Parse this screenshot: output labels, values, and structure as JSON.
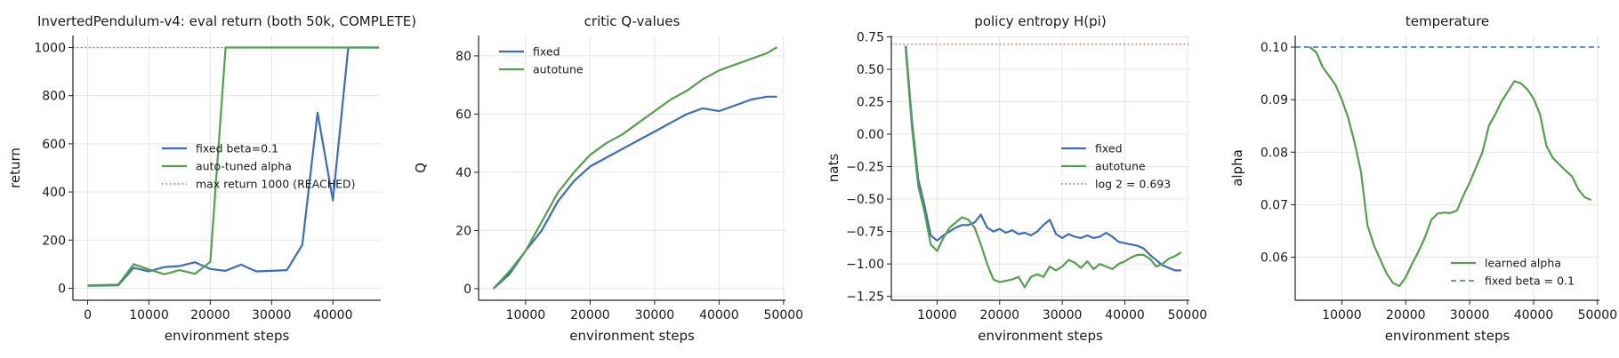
{
  "colors": {
    "fixed": "#3b6dbc",
    "auto": "#54a04f",
    "ref_red": "#d9534f",
    "ref_blue": "#3b6dbc"
  },
  "chart_data": [
    {
      "type": "line",
      "title": "InvertedPendulum-v4: eval return (both 50k, COMPLETE)",
      "xlabel": "environment steps",
      "ylabel": "return",
      "xlim": [
        -2400,
        47800
      ],
      "ylim": [
        -50,
        1050
      ],
      "xticks": [
        0,
        10000,
        20000,
        30000,
        40000
      ],
      "yticks": [
        0,
        200,
        400,
        600,
        800,
        1000
      ],
      "grid": true,
      "legend_position": "center",
      "series": [
        {
          "name": "fixed beta=0.1",
          "color": "fixed",
          "x": [
            0,
            5000,
            7500,
            10000,
            12500,
            15000,
            17500,
            20000,
            22500,
            25000,
            27500,
            30000,
            32500,
            35000,
            37500,
            40000,
            42500,
            45000,
            47500
          ],
          "y": [
            10,
            12,
            85,
            70,
            88,
            92,
            108,
            80,
            72,
            98,
            70,
            72,
            75,
            180,
            730,
            365,
            1000,
            1000,
            1000
          ]
        },
        {
          "name": "auto-tuned alpha",
          "color": "auto",
          "x": [
            0,
            5000,
            7500,
            10000,
            12500,
            15000,
            17500,
            20000,
            22500,
            25000,
            27500,
            30000,
            32500,
            35000,
            37500,
            40000,
            42500,
            45000,
            47500
          ],
          "y": [
            12,
            15,
            100,
            78,
            58,
            75,
            60,
            110,
            1000,
            1000,
            1000,
            1000,
            1000,
            1000,
            1000,
            1000,
            1000,
            1000,
            1000
          ]
        }
      ],
      "hlines": [
        {
          "name": "max return 1000 (REACHED)",
          "y": 1000,
          "color": "ref_red",
          "style": "dotted"
        }
      ]
    },
    {
      "type": "line",
      "title": "critic Q-values",
      "xlabel": "environment steps",
      "ylabel": "Q",
      "xlim": [
        2700,
        50300
      ],
      "ylim": [
        -4,
        87
      ],
      "xticks": [
        10000,
        20000,
        30000,
        40000,
        50000
      ],
      "yticks": [
        0,
        20,
        40,
        60,
        80
      ],
      "grid": true,
      "legend_position": "upper left",
      "series": [
        {
          "name": "fixed",
          "color": "fixed",
          "x": [
            5000,
            7500,
            10000,
            12500,
            15000,
            17500,
            20000,
            22500,
            25000,
            27500,
            30000,
            32500,
            35000,
            37500,
            40000,
            42500,
            45000,
            47500,
            49000
          ],
          "y": [
            0,
            5,
            13,
            20,
            30,
            37,
            42,
            45,
            48,
            51,
            54,
            57,
            60,
            62,
            61,
            63,
            65,
            66,
            66
          ]
        },
        {
          "name": "autotune",
          "color": "auto",
          "x": [
            5000,
            7500,
            10000,
            12500,
            15000,
            17500,
            20000,
            22500,
            25000,
            27500,
            30000,
            32500,
            35000,
            37500,
            40000,
            42500,
            45000,
            47500,
            49000
          ],
          "y": [
            0,
            6,
            13,
            23,
            33,
            40,
            46,
            50,
            53,
            57,
            61,
            65,
            68,
            72,
            75,
            77,
            79,
            81,
            83
          ]
        }
      ]
    },
    {
      "type": "line",
      "title": "policy entropy H(pi)",
      "xlabel": "environment steps",
      "ylabel": "nats",
      "xlim": [
        2700,
        50300
      ],
      "ylim": [
        -1.28,
        0.76
      ],
      "xticks": [
        10000,
        20000,
        30000,
        40000,
        50000
      ],
      "yticks": [
        -1.25,
        -1.0,
        -0.75,
        -0.5,
        -0.25,
        0.0,
        0.25,
        0.5,
        0.75
      ],
      "grid": true,
      "legend_position": "center right",
      "series": [
        {
          "name": "fixed",
          "color": "fixed",
          "x": [
            5000,
            6000,
            7000,
            8000,
            9000,
            10000,
            11000,
            12000,
            13000,
            14000,
            15000,
            16000,
            17000,
            18000,
            19000,
            20000,
            21000,
            22000,
            23000,
            24000,
            25000,
            26000,
            27000,
            28000,
            29000,
            30000,
            31000,
            32000,
            33000,
            34000,
            35000,
            36000,
            37000,
            38000,
            39000,
            40000,
            41000,
            42000,
            43000,
            44000,
            45000,
            46000,
            47000,
            48000,
            49000
          ],
          "y": [
            0.68,
            0.1,
            -0.35,
            -0.55,
            -0.78,
            -0.82,
            -0.78,
            -0.75,
            -0.72,
            -0.7,
            -0.7,
            -0.68,
            -0.62,
            -0.72,
            -0.75,
            -0.73,
            -0.76,
            -0.74,
            -0.77,
            -0.76,
            -0.78,
            -0.75,
            -0.7,
            -0.66,
            -0.77,
            -0.8,
            -0.77,
            -0.79,
            -0.8,
            -0.78,
            -0.8,
            -0.79,
            -0.76,
            -0.79,
            -0.83,
            -0.84,
            -0.85,
            -0.86,
            -0.88,
            -0.93,
            -0.97,
            -1.01,
            -1.03,
            -1.05,
            -1.05
          ]
        },
        {
          "name": "autotune",
          "color": "auto",
          "x": [
            5000,
            6000,
            7000,
            8000,
            9000,
            10000,
            11000,
            12000,
            13000,
            14000,
            15000,
            16000,
            17000,
            18000,
            19000,
            20000,
            21000,
            22000,
            23000,
            24000,
            25000,
            26000,
            27000,
            28000,
            29000,
            30000,
            31000,
            32000,
            33000,
            34000,
            35000,
            36000,
            37000,
            38000,
            39000,
            40000,
            41000,
            42000,
            43000,
            44000,
            45000,
            46000,
            47000,
            48000,
            49000
          ],
          "y": [
            0.65,
            0.05,
            -0.4,
            -0.6,
            -0.85,
            -0.9,
            -0.8,
            -0.72,
            -0.68,
            -0.64,
            -0.66,
            -0.72,
            -0.85,
            -1.0,
            -1.12,
            -1.14,
            -1.13,
            -1.12,
            -1.1,
            -1.18,
            -1.1,
            -1.08,
            -1.1,
            -1.02,
            -1.05,
            -1.02,
            -0.97,
            -0.99,
            -1.03,
            -0.98,
            -1.04,
            -1.0,
            -1.02,
            -1.04,
            -1.0,
            -0.98,
            -0.95,
            -0.93,
            -0.93,
            -0.96,
            -1.02,
            -1.0,
            -0.96,
            -0.94,
            -0.91
          ]
        }
      ],
      "hlines": [
        {
          "name": "log 2 = 0.693",
          "y": 0.693,
          "color": "ref_red",
          "style": "dotted"
        }
      ]
    },
    {
      "type": "line",
      "title": "temperature",
      "xlabel": "environment steps",
      "ylabel": "alpha",
      "xlim": [
        2700,
        50300
      ],
      "ylim": [
        0.0518,
        0.1022
      ],
      "xticks": [
        10000,
        20000,
        30000,
        40000,
        50000
      ],
      "yticks": [
        0.06,
        0.07,
        0.08,
        0.09,
        0.1
      ],
      "grid": true,
      "legend_position": "lower right",
      "series": [
        {
          "name": "learned alpha",
          "color": "auto",
          "x": [
            5000,
            6000,
            7000,
            8000,
            9000,
            10000,
            11000,
            12000,
            13000,
            14000,
            15000,
            16000,
            17000,
            18000,
            19000,
            20000,
            21000,
            22000,
            23000,
            24000,
            25000,
            26000,
            27000,
            28000,
            29000,
            30000,
            31000,
            32000,
            33000,
            34000,
            35000,
            36000,
            37000,
            38000,
            39000,
            40000,
            41000,
            42000,
            43000,
            44000,
            45000,
            46000,
            47000,
            48000,
            49000
          ],
          "y": [
            0.1,
            0.099,
            0.0962,
            0.0945,
            0.0928,
            0.09,
            0.0865,
            0.0818,
            0.0762,
            0.0661,
            0.0623,
            0.0596,
            0.0569,
            0.0551,
            0.0545,
            0.0562,
            0.0588,
            0.0611,
            0.0638,
            0.0671,
            0.0683,
            0.0685,
            0.0684,
            0.0689,
            0.0717,
            0.0742,
            0.0771,
            0.08,
            0.085,
            0.0872,
            0.0897,
            0.0916,
            0.0935,
            0.0931,
            0.092,
            0.0902,
            0.0872,
            0.0812,
            0.0789,
            0.0777,
            0.0765,
            0.0754,
            0.0729,
            0.0714,
            0.0709
          ]
        }
      ],
      "hlines": [
        {
          "name": "fixed beta = 0.1",
          "y": 0.1,
          "color": "ref_blue",
          "style": "dashed"
        }
      ]
    }
  ]
}
